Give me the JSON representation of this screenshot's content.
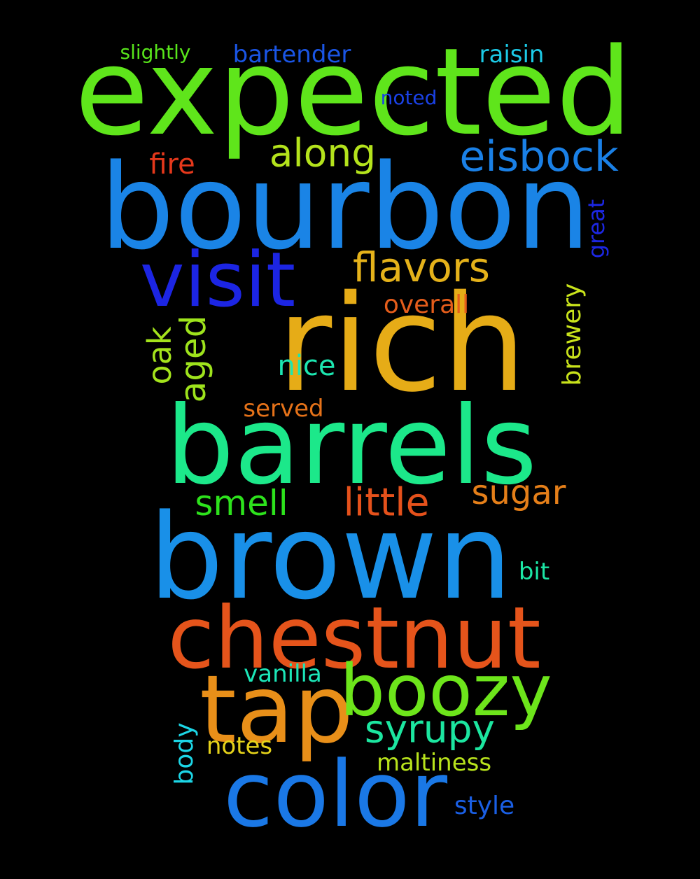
{
  "word_cloud": {
    "background": "#000000",
    "words": [
      {
        "text": "expected",
        "color": "#5fe51b"
      },
      {
        "text": "bourbon",
        "color": "#1a84e6"
      },
      {
        "text": "rich",
        "color": "#e6ac17"
      },
      {
        "text": "barrels",
        "color": "#1ce88a"
      },
      {
        "text": "brown",
        "color": "#1990e8"
      },
      {
        "text": "chestnut",
        "color": "#e5541b"
      },
      {
        "text": "tap",
        "color": "#e88f19"
      },
      {
        "text": "boozy",
        "color": "#6de51b"
      },
      {
        "text": "color",
        "color": "#1a78e6"
      },
      {
        "text": "visit",
        "color": "#1c25e3"
      },
      {
        "text": "flavors",
        "color": "#e5b21a"
      },
      {
        "text": "eisbock",
        "color": "#1a80e6"
      },
      {
        "text": "along",
        "color": "#b4e31c"
      },
      {
        "text": "syrupy",
        "color": "#1ce6a0"
      },
      {
        "text": "little",
        "color": "#e5511b"
      },
      {
        "text": "sugar",
        "color": "#e57f19"
      },
      {
        "text": "smell",
        "color": "#2de21c"
      },
      {
        "text": "aged",
        "color": "#9ee31c"
      },
      {
        "text": "oak",
        "color": "#a4e31c"
      },
      {
        "text": "brewery",
        "color": "#c9e31b"
      },
      {
        "text": "nice",
        "color": "#1ce6b0"
      },
      {
        "text": "overall",
        "color": "#e55d1b"
      },
      {
        "text": "fire",
        "color": "#e5381b"
      },
      {
        "text": "served",
        "color": "#e57219"
      },
      {
        "text": "bartender",
        "color": "#1a55e5"
      },
      {
        "text": "raisin",
        "color": "#1ccae6"
      },
      {
        "text": "slightly",
        "color": "#58e51b"
      },
      {
        "text": "noted",
        "color": "#1a41e5"
      },
      {
        "text": "great",
        "color": "#1c27e3"
      },
      {
        "text": "bit",
        "color": "#1ce6a5"
      },
      {
        "text": "vanilla",
        "color": "#1ce6b8"
      },
      {
        "text": "notes",
        "color": "#e5d21a"
      },
      {
        "text": "body",
        "color": "#1cd6e6"
      },
      {
        "text": "maltiness",
        "color": "#b8e31c"
      },
      {
        "text": "style",
        "color": "#1a5fe5"
      }
    ]
  }
}
